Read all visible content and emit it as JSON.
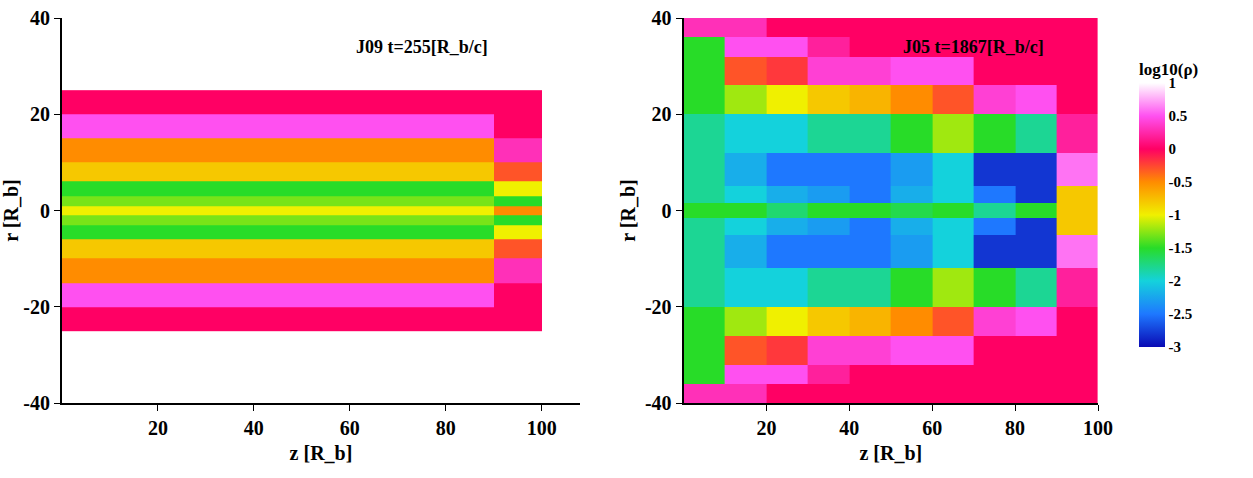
{
  "chart_data": [
    {
      "type": "heatmap",
      "title": "J09 t=255[R_b/c]",
      "x_label": "z [R_b]",
      "y_label": "r [R_b]",
      "xlim": [
        0,
        108
      ],
      "xticks": [
        20,
        40,
        60,
        80,
        100
      ],
      "ylim": [
        -40,
        40
      ],
      "yticks": [
        -40,
        -20,
        0,
        20,
        40
      ],
      "x": [
        0,
        10,
        20,
        30,
        40,
        50,
        60,
        70,
        80,
        90,
        100
      ],
      "y": [
        -25,
        -20,
        -15,
        -10,
        -6,
        -3,
        -1,
        1,
        3,
        6,
        10,
        15,
        20,
        25
      ],
      "cells": [
        [
          0,
          0,
          0,
          0,
          0,
          0,
          0,
          0,
          0,
          0
        ],
        [
          0.5,
          0.5,
          0.5,
          0.5,
          0.5,
          0.5,
          0.5,
          0.5,
          0.5,
          0
        ],
        [
          -0.5,
          -0.5,
          -0.5,
          -0.5,
          -0.5,
          -0.5,
          -0.5,
          -0.5,
          -0.5,
          0.3
        ],
        [
          -0.8,
          -0.8,
          -0.8,
          -0.8,
          -0.8,
          -0.8,
          -0.8,
          -0.8,
          -0.8,
          -0.3
        ],
        [
          -1.5,
          -1.5,
          -1.5,
          -1.5,
          -1.5,
          -1.5,
          -1.5,
          -1.5,
          -1.5,
          -1
        ],
        [
          -1.3,
          -1.3,
          -1.3,
          -1.3,
          -1.3,
          -1.3,
          -1.3,
          -1.3,
          -1.3,
          -1.5
        ],
        [
          -1,
          -1,
          -1,
          -1,
          -1,
          -1,
          -1,
          -1,
          -1,
          -0.5
        ],
        [
          -1.3,
          -1.3,
          -1.3,
          -1.3,
          -1.3,
          -1.3,
          -1.3,
          -1.3,
          -1.3,
          -1.5
        ],
        [
          -1.5,
          -1.5,
          -1.5,
          -1.5,
          -1.5,
          -1.5,
          -1.5,
          -1.5,
          -1.5,
          -1
        ],
        [
          -0.8,
          -0.8,
          -0.8,
          -0.8,
          -0.8,
          -0.8,
          -0.8,
          -0.8,
          -0.8,
          -0.3
        ],
        [
          -0.5,
          -0.5,
          -0.5,
          -0.5,
          -0.5,
          -0.5,
          -0.5,
          -0.5,
          -0.5,
          0.3
        ],
        [
          0.5,
          0.5,
          0.5,
          0.5,
          0.5,
          0.5,
          0.5,
          0.5,
          0.5,
          0
        ],
        [
          0,
          0,
          0,
          0,
          0,
          0,
          0,
          0,
          0,
          0
        ]
      ]
    },
    {
      "type": "heatmap",
      "title": "J05 t=1867[R_b/c]",
      "x_label": "z [R_b]",
      "y_label": "r [R_b]",
      "xlim": [
        0,
        100
      ],
      "xticks": [
        20,
        40,
        60,
        80,
        100
      ],
      "ylim": [
        -40,
        40
      ],
      "yticks": [
        -40,
        -20,
        0,
        20,
        40
      ],
      "x": [
        0,
        10,
        20,
        30,
        40,
        50,
        60,
        70,
        80,
        90,
        100
      ],
      "y": [
        -40,
        -36,
        -32,
        -26,
        -20,
        -12,
        -5,
        -1.5,
        1.5,
        5,
        12,
        20,
        26,
        32,
        36,
        40
      ],
      "cells": [
        [
          0.3,
          0.3,
          0,
          0,
          0,
          0,
          0,
          0,
          0,
          0
        ],
        [
          -1.5,
          0.5,
          0.5,
          0.2,
          0,
          0,
          0,
          0,
          0,
          0
        ],
        [
          -1.5,
          -0.3,
          -0.2,
          0.4,
          0.4,
          0.5,
          0.5,
          0,
          0,
          0
        ],
        [
          -1.5,
          -1.2,
          -1,
          -0.8,
          -0.7,
          -0.5,
          -0.3,
          0.4,
          0.5,
          0
        ],
        [
          -1.8,
          -2,
          -2,
          -1.8,
          -1.8,
          -1.5,
          -1.2,
          -1.5,
          -1.8,
          0.2
        ],
        [
          -1.8,
          -2.2,
          -2.5,
          -2.5,
          -2.5,
          -2.3,
          -2,
          -2.8,
          -2.8,
          0.6
        ],
        [
          -1.8,
          -2,
          -2.2,
          -2.3,
          -2.5,
          -2.2,
          -2,
          -2.5,
          -2.8,
          -0.8
        ],
        [
          -1.5,
          -1.5,
          -1.7,
          -1.5,
          -1.5,
          -1.6,
          -1.5,
          -1.8,
          -1.5,
          -0.8
        ],
        [
          -1.8,
          -2,
          -2.2,
          -2.3,
          -2.5,
          -2.2,
          -2,
          -2.5,
          -2.8,
          -0.8
        ],
        [
          -1.8,
          -2.2,
          -2.5,
          -2.5,
          -2.5,
          -2.3,
          -2,
          -2.8,
          -2.8,
          0.6
        ],
        [
          -1.8,
          -2,
          -2,
          -1.8,
          -1.8,
          -1.5,
          -1.2,
          -1.5,
          -1.8,
          0.2
        ],
        [
          -1.5,
          -1.2,
          -1,
          -0.8,
          -0.7,
          -0.5,
          -0.3,
          0.4,
          0.5,
          0
        ],
        [
          -1.5,
          -0.3,
          -0.2,
          0.4,
          0.4,
          0.5,
          0.5,
          0,
          0,
          0
        ],
        [
          -1.5,
          0.5,
          0.5,
          0.2,
          0,
          0,
          0,
          0,
          0,
          0
        ],
        [
          0.3,
          0.3,
          0,
          0,
          0,
          0,
          0,
          0,
          0,
          0
        ]
      ]
    }
  ],
  "colorbar": {
    "title": "log10(ρ)",
    "range": [
      -3,
      1
    ],
    "ticks": [
      1,
      0.5,
      0,
      -0.5,
      -1,
      -1.5,
      -2,
      -2.5,
      -3
    ]
  }
}
